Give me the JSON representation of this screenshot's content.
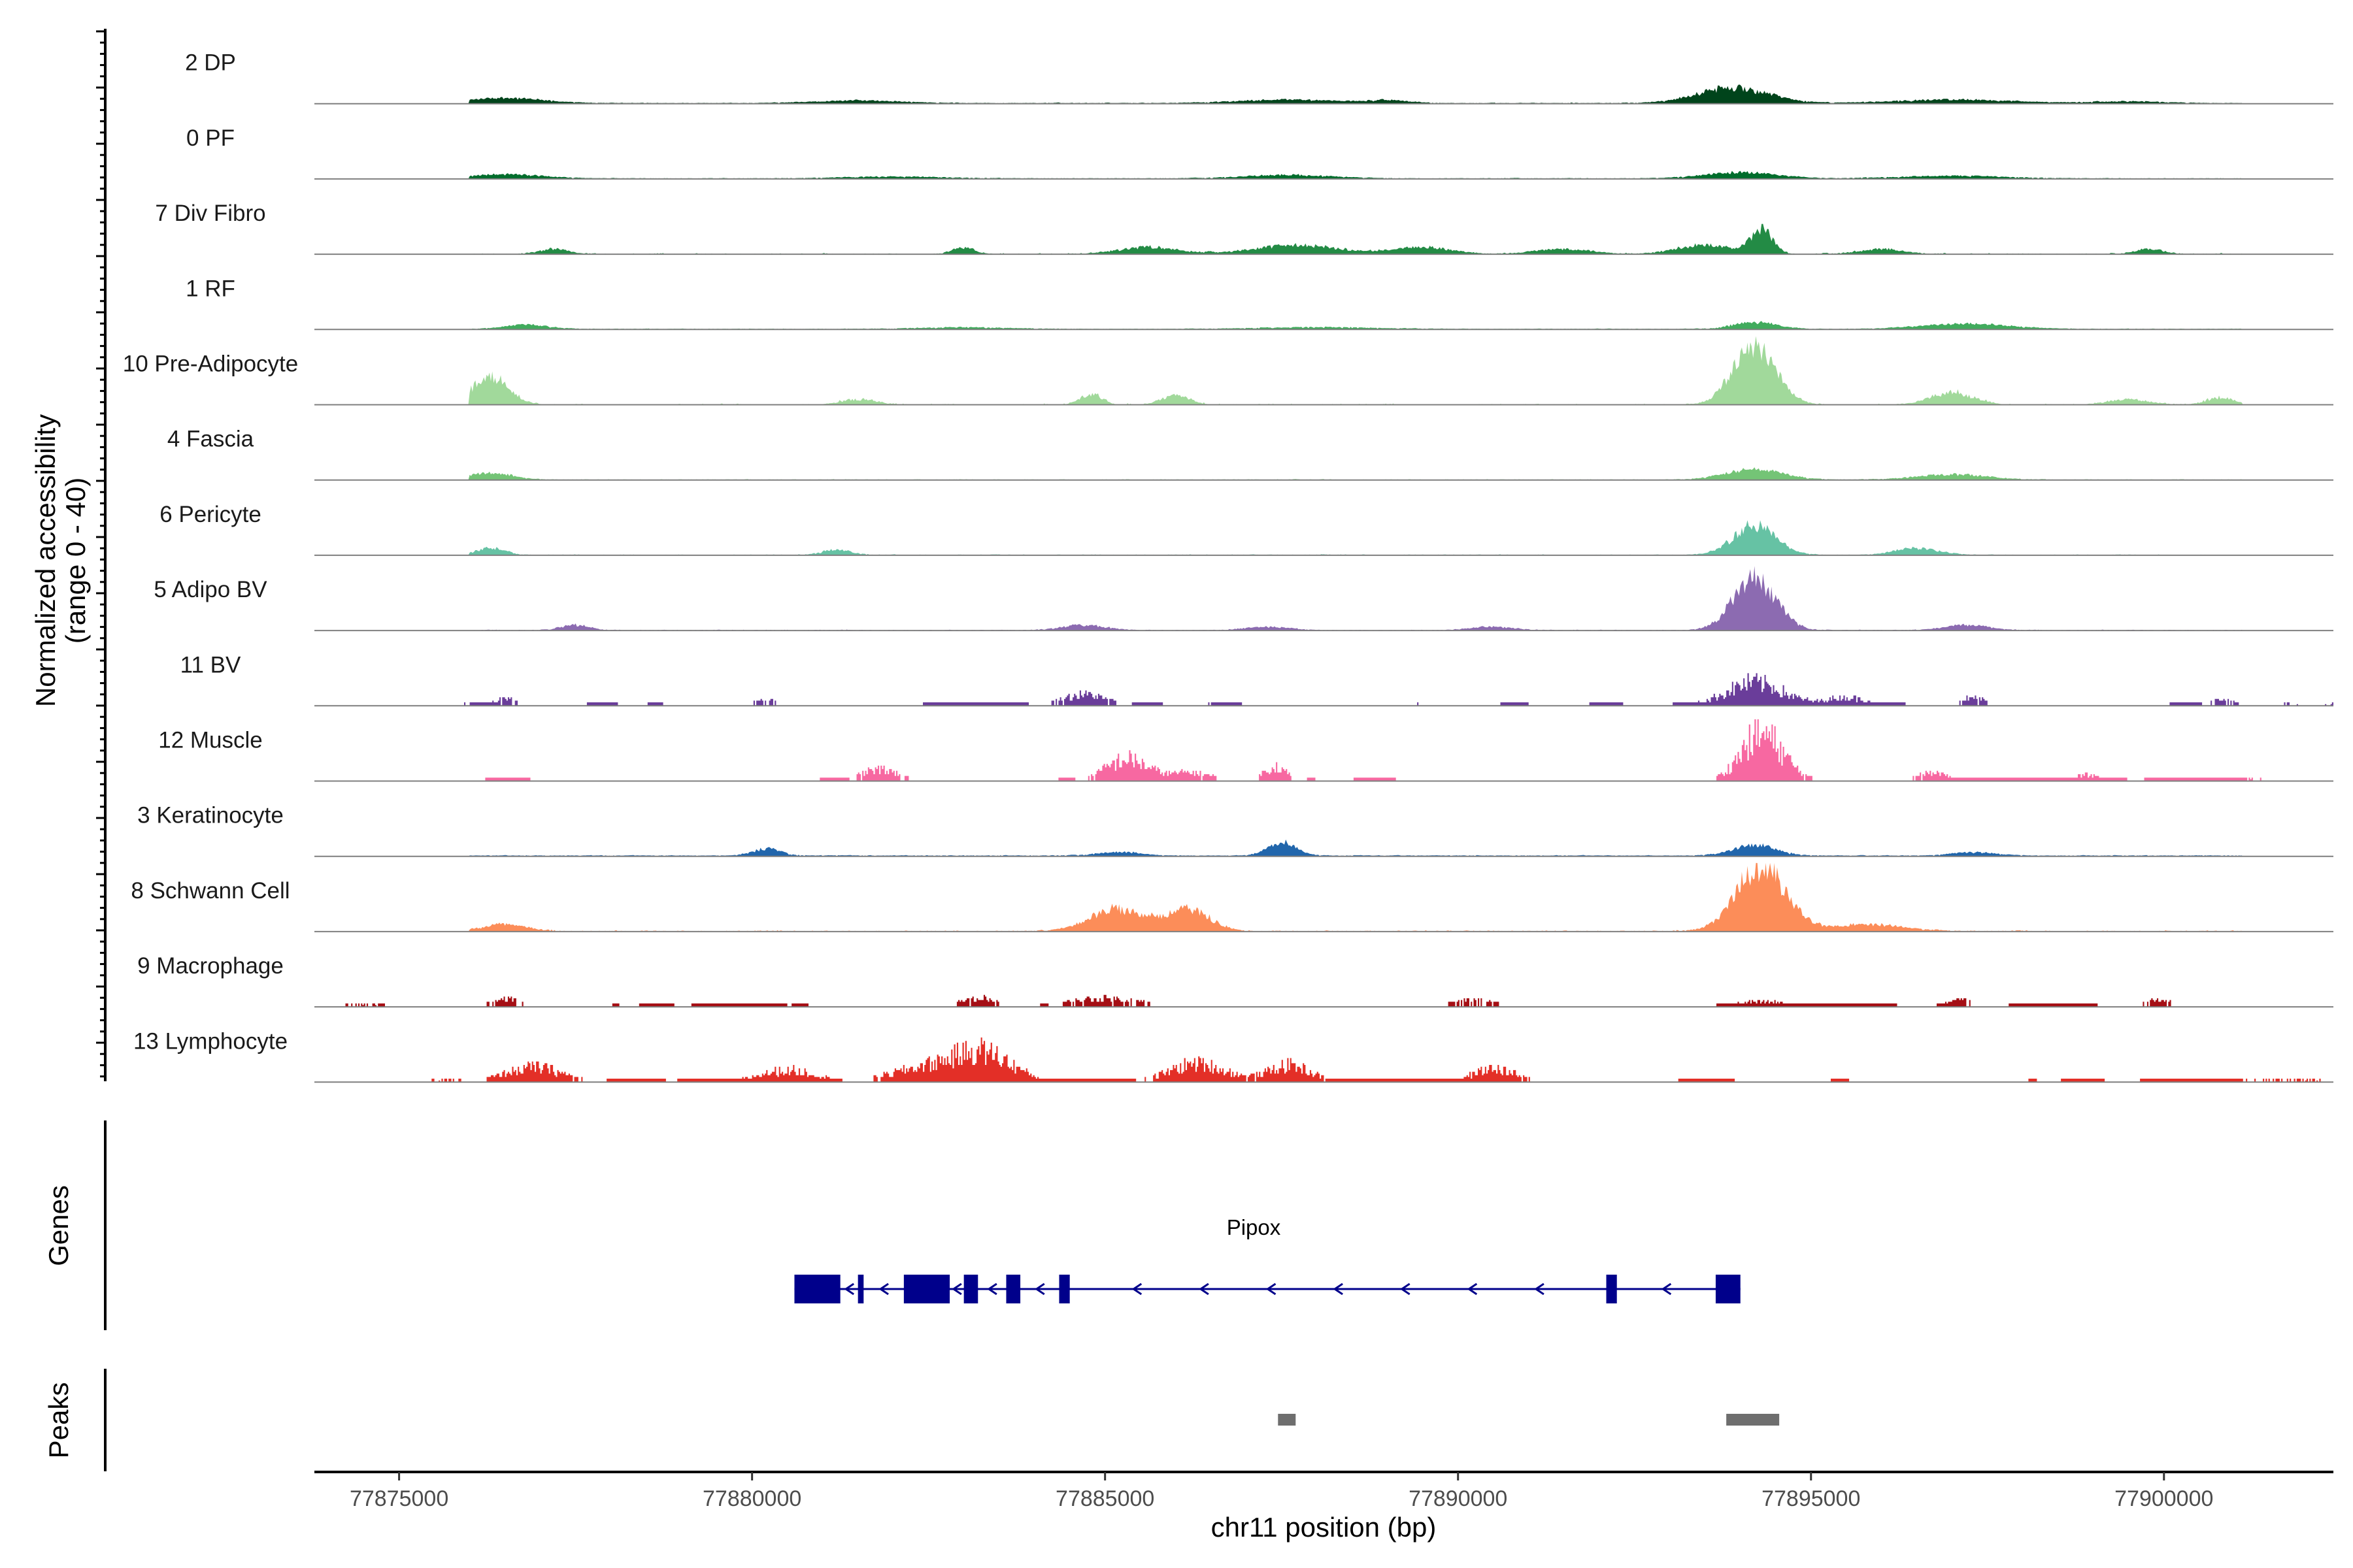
{
  "chart_data": {
    "type": "area",
    "title": "",
    "chromosome": "chr11",
    "xlabel": "chr11 position (bp)",
    "ylabel_line1": "Normalized accessibility",
    "ylabel_line2": "(range 0 - 40)",
    "genes_label": "Genes",
    "peaks_label": "Peaks",
    "x_range": [
      77873800,
      77902400
    ],
    "y_range": [
      0,
      40
    ],
    "x_ticks": [
      {
        "value": 77875000,
        "label": "77875000"
      },
      {
        "value": 77880000,
        "label": "77880000"
      },
      {
        "value": 77885000,
        "label": "77885000"
      },
      {
        "value": 77890000,
        "label": "77890000"
      },
      {
        "value": 77895000,
        "label": "77895000"
      },
      {
        "value": 77900000,
        "label": "77900000"
      }
    ],
    "tracks": [
      {
        "name": "2 DP",
        "color": "#00441b",
        "mode": "smooth",
        "base": 0.3,
        "noise": 0.6,
        "fill": 0.9,
        "peaks": [
          [
            77876500,
            3,
            500
          ],
          [
            77881500,
            1.5,
            600
          ],
          [
            77887600,
            2,
            700
          ],
          [
            77889000,
            1.5,
            300
          ],
          [
            77893900,
            9,
            500
          ],
          [
            77897000,
            2,
            800
          ],
          [
            77899500,
            1,
            500
          ]
        ]
      },
      {
        "name": "0 PF",
        "color": "#006d2c",
        "mode": "smooth",
        "base": 0.3,
        "noise": 0.5,
        "fill": 0.85,
        "peaks": [
          [
            77876500,
            2.5,
            500
          ],
          [
            77882000,
            1,
            700
          ],
          [
            77887600,
            2,
            600
          ],
          [
            77894000,
            3.5,
            500
          ],
          [
            77897000,
            1.5,
            700
          ]
        ]
      },
      {
        "name": "7 Div Fibro",
        "color": "#238b45",
        "mode": "smooth",
        "base": 0,
        "noise": 1.2,
        "fill": 0.55,
        "peaks": [
          [
            77877200,
            3,
            200
          ],
          [
            77883000,
            4,
            150
          ],
          [
            77885600,
            4,
            400
          ],
          [
            77887700,
            5,
            600
          ],
          [
            77889500,
            4,
            400
          ],
          [
            77891500,
            3,
            400
          ],
          [
            77893500,
            5,
            400
          ],
          [
            77894300,
            14,
            150
          ],
          [
            77896000,
            3,
            300
          ],
          [
            77899800,
            3,
            200
          ]
        ]
      },
      {
        "name": "1 RF",
        "color": "#41ab5d",
        "mode": "smooth",
        "base": 0.3,
        "noise": 0.5,
        "fill": 0.85,
        "peaks": [
          [
            77876800,
            2.5,
            300
          ],
          [
            77883000,
            1,
            600
          ],
          [
            77888000,
            1,
            800
          ],
          [
            77894200,
            4,
            300
          ],
          [
            77897200,
            3,
            600
          ]
        ]
      },
      {
        "name": "10 Pre-Adipocyte",
        "color": "#a1d99b",
        "mode": "smooth",
        "base": 0,
        "noise": 1.4,
        "fill": 0.35,
        "peaks": [
          [
            77876300,
            17,
            250
          ],
          [
            77881500,
            3,
            250
          ],
          [
            77884800,
            6,
            150
          ],
          [
            77886000,
            5,
            200
          ],
          [
            77894200,
            35,
            300
          ],
          [
            77897000,
            7,
            300
          ],
          [
            77899500,
            3,
            300
          ],
          [
            77900800,
            4,
            200
          ]
        ]
      },
      {
        "name": "4 Fascia",
        "color": "#74c476",
        "mode": "smooth",
        "base": 0.2,
        "noise": 0.5,
        "fill": 0.7,
        "peaks": [
          [
            77876300,
            4,
            300
          ],
          [
            77894200,
            6,
            400
          ],
          [
            77897000,
            3,
            500
          ]
        ]
      },
      {
        "name": "6 Pericyte",
        "color": "#66c2a4",
        "mode": "smooth",
        "base": 0.2,
        "noise": 0.6,
        "fill": 0.65,
        "peaks": [
          [
            77876300,
            4,
            200
          ],
          [
            77881200,
            3,
            200
          ],
          [
            77894200,
            17,
            300
          ],
          [
            77896500,
            4,
            300
          ]
        ]
      },
      {
        "name": "5 Adipo BV",
        "color": "#8c6bb1",
        "mode": "smooth",
        "base": 0.2,
        "noise": 0.6,
        "fill": 0.65,
        "peaks": [
          [
            77877500,
            3,
            200
          ],
          [
            77884700,
            3,
            300
          ],
          [
            77887300,
            2,
            300
          ],
          [
            77890500,
            2,
            300
          ],
          [
            77894200,
            30,
            300
          ],
          [
            77897200,
            3,
            300
          ]
        ]
      },
      {
        "name": "11 BV",
        "color": "#6a3d9a",
        "mode": "blocky",
        "base": 0,
        "noise": 1,
        "fill": 0.22,
        "peaks": [
          [
            77876500,
            4,
            150
          ],
          [
            77880200,
            4,
            150
          ],
          [
            77884700,
            7,
            300
          ],
          [
            77894200,
            14,
            400
          ],
          [
            77895500,
            5,
            300
          ],
          [
            77897300,
            5,
            150
          ],
          [
            77900800,
            4,
            150
          ]
        ]
      },
      {
        "name": "12 Muscle",
        "color": "#f768a1",
        "mode": "blocky",
        "base": 0,
        "noise": 1,
        "fill": 0.3,
        "peaks": [
          [
            77881800,
            7,
            250
          ],
          [
            77885300,
            13,
            300
          ],
          [
            77886200,
            5,
            300
          ],
          [
            77887400,
            9,
            150
          ],
          [
            77894300,
            28,
            300
          ],
          [
            77896700,
            5,
            200
          ],
          [
            77898900,
            4,
            150
          ]
        ]
      },
      {
        "name": "3 Keratinocyte",
        "color": "#2166ac",
        "mode": "smooth",
        "base": 0.4,
        "noise": 0.6,
        "fill": 0.9,
        "peaks": [
          [
            77880200,
            4,
            200
          ],
          [
            77885200,
            2,
            300
          ],
          [
            77887500,
            8,
            200
          ],
          [
            77894200,
            6,
            300
          ],
          [
            77897300,
            2,
            300
          ]
        ]
      },
      {
        "name": "8 Schwann Cell",
        "color": "#fc8d59",
        "mode": "smooth",
        "base": 0.2,
        "noise": 1,
        "fill": 0.6,
        "peaks": [
          [
            77876500,
            4,
            300
          ],
          [
            77885200,
            13,
            400
          ],
          [
            77886200,
            12,
            300
          ],
          [
            77894300,
            38,
            350
          ],
          [
            77895800,
            4,
            500
          ]
        ]
      },
      {
        "name": "9 Macrophage",
        "color": "#a50f15",
        "mode": "blocky",
        "base": 0,
        "noise": 1,
        "fill": 0.38,
        "peaks": [
          [
            77876500,
            5,
            200
          ],
          [
            77883200,
            5,
            250
          ],
          [
            77885000,
            5,
            500
          ],
          [
            77890200,
            4,
            300
          ],
          [
            77894300,
            3,
            400
          ],
          [
            77897100,
            4,
            200
          ],
          [
            77899900,
            4,
            200
          ]
        ]
      },
      {
        "name": "13 Lymphocyte",
        "color": "#e32f27",
        "mode": "blocky",
        "base": 0,
        "noise": 1,
        "fill": 0.48,
        "peaks": [
          [
            77876900,
            9,
            400
          ],
          [
            77880500,
            7,
            400
          ],
          [
            77882500,
            9,
            500
          ],
          [
            77883300,
            16,
            400
          ],
          [
            77886300,
            11,
            400
          ],
          [
            77887600,
            10,
            300
          ],
          [
            77890500,
            8,
            300
          ]
        ]
      }
    ],
    "gene": {
      "name": "Pipox",
      "strand": "-",
      "start": 77880600,
      "end": 77894000,
      "exons": [
        [
          77880600,
          77881250
        ],
        [
          77881500,
          77881580
        ],
        [
          77882150,
          77882800
        ],
        [
          77883000,
          77883200
        ],
        [
          77883600,
          77883800
        ],
        [
          77884350,
          77884500
        ],
        [
          77892100,
          77892250
        ],
        [
          77893650,
          77894000
        ]
      ]
    },
    "peaks_regions": [
      [
        77887450,
        77887700
      ],
      [
        77893800,
        77894550
      ]
    ]
  }
}
